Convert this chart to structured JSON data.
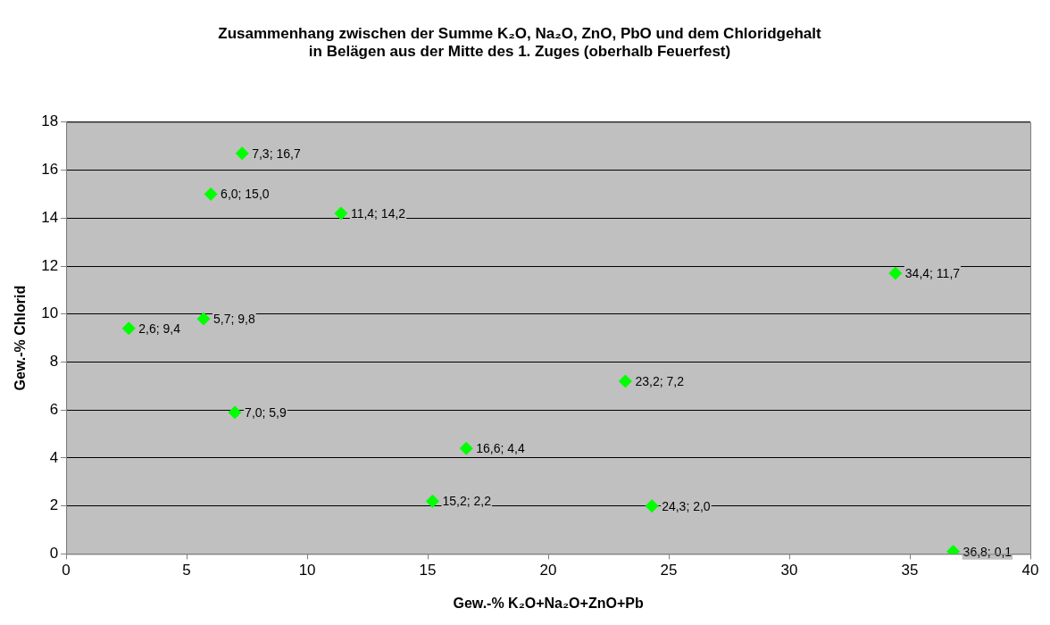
{
  "chart_data": {
    "type": "scatter",
    "title": "Zusammenhang zwischen der Summe K₂O, Na₂O, ZnO, PbO und dem Chloridgehalt\nin Belägen aus der Mitte des 1. Zuges (oberhalb Feuerfest)",
    "xlabel": "Gew.-% K₂O+Na₂O+ZnO+Pb",
    "ylabel": "Gew.-% Chlorid",
    "series": [
      {
        "color": "#00ff00",
        "x": [
          7.3,
          6.0,
          11.4,
          34.4,
          2.6,
          5.7,
          23.2,
          7.0,
          16.6,
          15.2,
          24.3,
          36.8
        ],
        "values": [
          16.7,
          15.0,
          14.2,
          11.7,
          9.4,
          9.8,
          7.2,
          5.9,
          4.4,
          2.2,
          2.0,
          0.1
        ],
        "value_labels": [
          "7,3; 16,7",
          "6,0; 15,0",
          "11,4; 14,2",
          "34,4; 11,7",
          "2,6; 9,4",
          "5,7; 9,8",
          "23,2; 7,2",
          "7,0; 5,9",
          "16,6; 4,4",
          "15,2; 2,2",
          "24,3; 2,0",
          "36,8; 0,1"
        ]
      }
    ],
    "xlim": [
      0,
      40
    ],
    "xticks": [
      0,
      5,
      10,
      15,
      20,
      25,
      30,
      35,
      40
    ],
    "ylim": [
      0,
      18
    ],
    "yticks": [
      0,
      2,
      4,
      6,
      8,
      10,
      12,
      14,
      16,
      18
    ],
    "grid": "y",
    "legend": false,
    "marker": "diamond"
  }
}
